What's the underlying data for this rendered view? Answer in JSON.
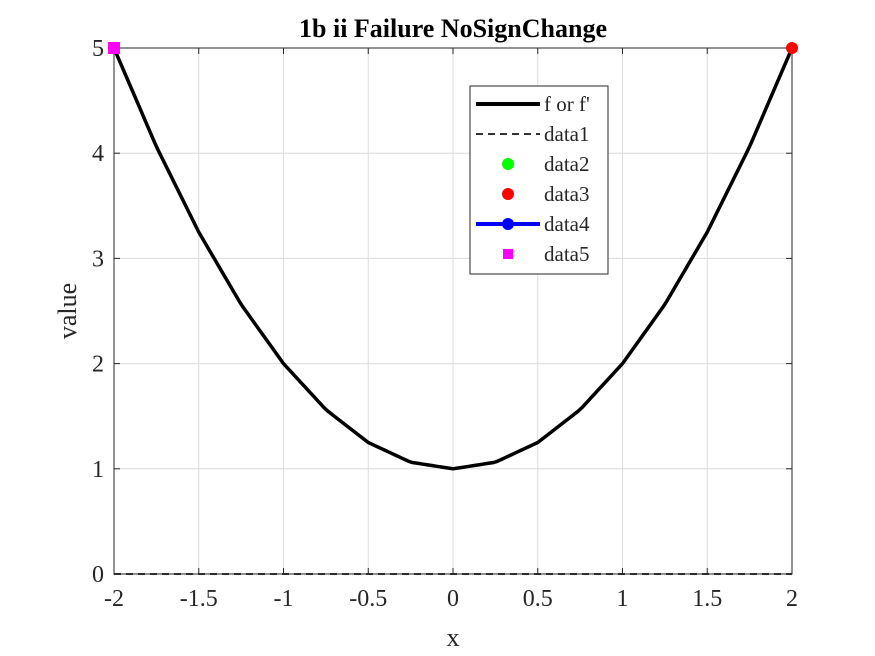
{
  "chart_data": {
    "type": "line",
    "title": "1b ii Failure NoSignChange",
    "xlabel": "x",
    "ylabel": "value",
    "xlim": [
      -2,
      2
    ],
    "ylim": [
      0,
      5
    ],
    "xticks": [
      -2,
      -1.5,
      -1,
      -0.5,
      0,
      0.5,
      1,
      1.5,
      2
    ],
    "xtick_labels": [
      "-2",
      "-1.5",
      "-1",
      "-0.5",
      "0",
      "0.5",
      "1",
      "1.5",
      "2"
    ],
    "yticks": [
      0,
      1,
      2,
      3,
      4,
      5
    ],
    "ytick_labels": [
      "0",
      "1",
      "2",
      "3",
      "4",
      "5"
    ],
    "grid": true,
    "legend_position": "top-right",
    "series": [
      {
        "name": "f or f'",
        "style": "solid",
        "color": "#000000",
        "x": [
          -2,
          -1.75,
          -1.5,
          -1.25,
          -1,
          -0.75,
          -0.5,
          -0.25,
          0,
          0.25,
          0.5,
          0.75,
          1,
          1.25,
          1.5,
          1.75,
          2
        ],
        "y": [
          5,
          4.0625,
          3.25,
          2.5625,
          2,
          1.5625,
          1.25,
          1.0625,
          1,
          1.0625,
          1.25,
          1.5625,
          2,
          2.5625,
          3.25,
          4.0625,
          5
        ]
      },
      {
        "name": "data1",
        "style": "dashed",
        "color": "#333333",
        "x": [
          -2,
          2
        ],
        "y": [
          0,
          0
        ]
      },
      {
        "name": "data2",
        "style": "marker-circle",
        "color": "#00ff00",
        "x": [],
        "y": []
      },
      {
        "name": "data3",
        "style": "marker-circle",
        "color": "#ff0000",
        "x": [
          -2,
          2
        ],
        "y": [
          5,
          5
        ]
      },
      {
        "name": "data4",
        "style": "line-marker-circle",
        "color": "#0000ff",
        "x": [],
        "y": []
      },
      {
        "name": "data5",
        "style": "marker-square",
        "color": "#ff00ff",
        "x": [
          -2
        ],
        "y": [
          5
        ]
      }
    ]
  }
}
